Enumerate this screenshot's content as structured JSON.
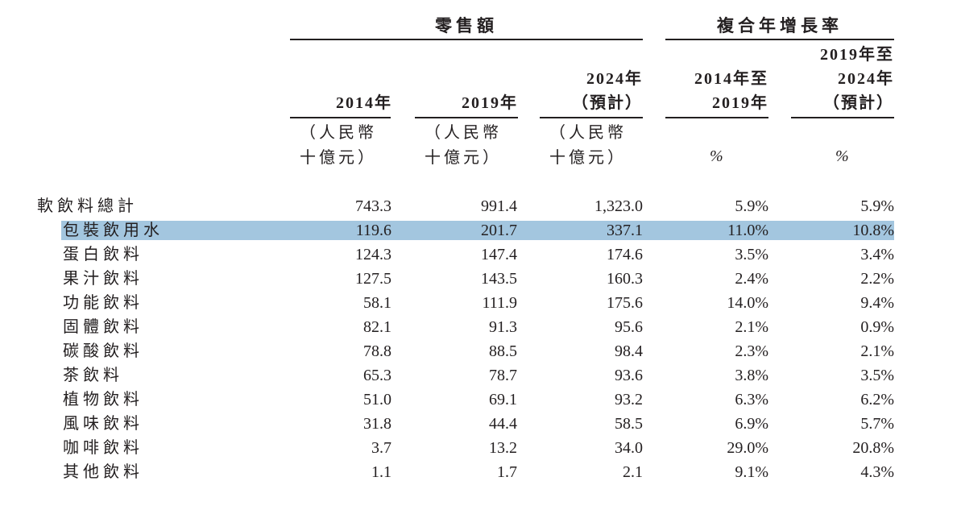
{
  "header": {
    "group_retail": "零售額",
    "group_cagr": "複合年增長率",
    "col_2014": "2014年",
    "col_2019": "2019年",
    "col_2024": [
      "2024年",
      "（預計）"
    ],
    "col_cagr1": [
      "2014年至",
      "2019年"
    ],
    "col_cagr2": [
      "2019年至",
      "2024年",
      "（預計）"
    ],
    "unit_line1": "（人民幣",
    "unit_line2": "十億元）",
    "percent": "%"
  },
  "rows": [
    {
      "label": "軟飲料總計",
      "v2014": "743.3",
      "v2019": "991.4",
      "v2024": "1,323.0",
      "c1": "5.9%",
      "c2": "5.9%"
    },
    {
      "label": "包裝飲用水",
      "v2014": "119.6",
      "v2019": "201.7",
      "v2024": "337.1",
      "c1": "11.0%",
      "c2": "10.8%"
    },
    {
      "label": "蛋白飲料",
      "v2014": "124.3",
      "v2019": "147.4",
      "v2024": "174.6",
      "c1": "3.5%",
      "c2": "3.4%"
    },
    {
      "label": "果汁飲料",
      "v2014": "127.5",
      "v2019": "143.5",
      "v2024": "160.3",
      "c1": "2.4%",
      "c2": "2.2%"
    },
    {
      "label": "功能飲料",
      "v2014": "58.1",
      "v2019": "111.9",
      "v2024": "175.6",
      "c1": "14.0%",
      "c2": "9.4%"
    },
    {
      "label": "固體飲料",
      "v2014": "82.1",
      "v2019": "91.3",
      "v2024": "95.6",
      "c1": "2.1%",
      "c2": "0.9%"
    },
    {
      "label": "碳酸飲料",
      "v2014": "78.8",
      "v2019": "88.5",
      "v2024": "98.4",
      "c1": "2.3%",
      "c2": "2.1%"
    },
    {
      "label": "茶飲料",
      "v2014": "65.3",
      "v2019": "78.7",
      "v2024": "93.6",
      "c1": "3.8%",
      "c2": "3.5%"
    },
    {
      "label": "植物飲料",
      "v2014": "51.0",
      "v2019": "69.1",
      "v2024": "93.2",
      "c1": "6.3%",
      "c2": "6.2%"
    },
    {
      "label": "風味飲料",
      "v2014": "31.8",
      "v2019": "44.4",
      "v2024": "58.5",
      "c1": "6.9%",
      "c2": "5.7%"
    },
    {
      "label": "咖啡飲料",
      "v2014": "3.7",
      "v2019": "13.2",
      "v2024": "34.0",
      "c1": "29.0%",
      "c2": "20.8%"
    },
    {
      "label": "其他飲料",
      "v2014": "1.1",
      "v2019": "1.7",
      "v2024": "2.1",
      "c1": "9.1%",
      "c2": "4.3%"
    }
  ],
  "highlight_color": "#a3c6df"
}
